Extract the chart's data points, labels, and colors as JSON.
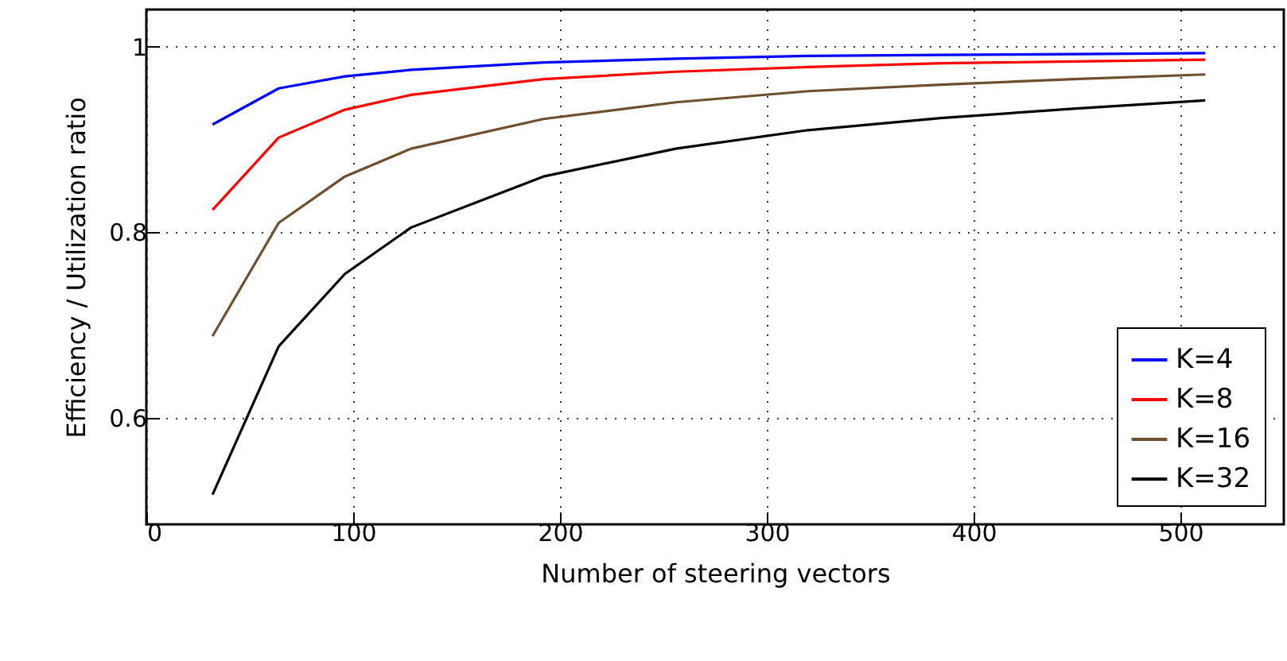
{
  "chart_data": {
    "type": "line",
    "xlabel": "Number of steering vectors",
    "ylabel": "Efficiency / Utilization ratio",
    "x": [
      32,
      64,
      96,
      128,
      192,
      256,
      320,
      384,
      448,
      512
    ],
    "series": [
      {
        "name": "K=4",
        "color": "#0000ff",
        "values": [
          0.916,
          0.955,
          0.968,
          0.975,
          0.983,
          0.987,
          0.99,
          0.991,
          0.992,
          0.993
        ]
      },
      {
        "name": "K=8",
        "color": "#ff0000",
        "values": [
          0.824,
          0.902,
          0.932,
          0.948,
          0.965,
          0.973,
          0.978,
          0.982,
          0.984,
          0.986
        ]
      },
      {
        "name": "K=16",
        "color": "#6f4e2e",
        "values": [
          0.688,
          0.81,
          0.86,
          0.89,
          0.922,
          0.94,
          0.952,
          0.959,
          0.965,
          0.97
        ]
      },
      {
        "name": "K=32",
        "color": "#000000",
        "values": [
          0.517,
          0.677,
          0.755,
          0.805,
          0.86,
          0.89,
          0.91,
          0.923,
          0.933,
          0.942
        ]
      }
    ],
    "xlim": [
      0,
      550
    ],
    "xticks": [
      0,
      100,
      200,
      300,
      400,
      500
    ],
    "ylim": [
      0.485,
      1.04
    ],
    "yticks": [
      0.6,
      0.8,
      {
        "value": 1,
        "label": "1"
      }
    ],
    "grid": true,
    "legend": "bottom right",
    "marker": "none",
    "line_style": "solid"
  }
}
